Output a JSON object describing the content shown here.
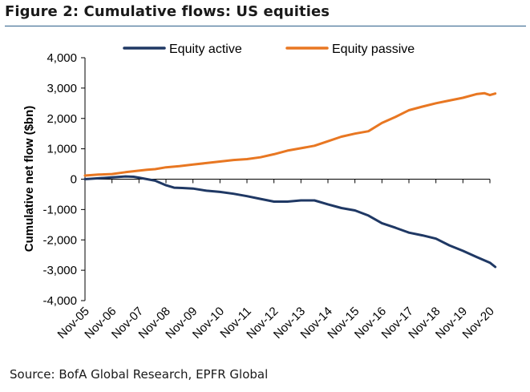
{
  "figure": {
    "title": "Figure 2: Cumulative flows: US equities",
    "source": "Source: BofA Global Research, EPFR Global"
  },
  "chart_data": {
    "type": "line",
    "title": "Figure 2: Cumulative flows: US equities",
    "xlabel": "",
    "ylabel": "Cumulative net flow ($bn)",
    "ylim": [
      -4000,
      4000
    ],
    "yticks": [
      4000,
      3000,
      2000,
      1000,
      0,
      -1000,
      -2000,
      -3000,
      -4000
    ],
    "ytick_labels": [
      "4,000",
      "3,000",
      "2,000",
      "1,000",
      "0",
      "-1,000",
      "-2,000",
      "-3,000",
      "-4,000"
    ],
    "categories": [
      "Nov-05",
      "Nov-06",
      "Nov-07",
      "Nov-08",
      "Nov-09",
      "Nov-10",
      "Nov-11",
      "Nov-12",
      "Nov-13",
      "Nov-14",
      "Nov-15",
      "Nov-16",
      "Nov-17",
      "Nov-18",
      "Nov-19",
      "Nov-20"
    ],
    "grid": false,
    "legend": "top",
    "series": [
      {
        "name": "Equity active",
        "color": "#1f3864",
        "points": [
          [
            0,
            0
          ],
          [
            0.5,
            30
          ],
          [
            1,
            60
          ],
          [
            1.5,
            90
          ],
          [
            1.8,
            80
          ],
          [
            2,
            50
          ],
          [
            2.3,
            0
          ],
          [
            2.6,
            -50
          ],
          [
            3,
            -200
          ],
          [
            3.3,
            -280
          ],
          [
            3.6,
            -290
          ],
          [
            4,
            -310
          ],
          [
            4.5,
            -380
          ],
          [
            5,
            -420
          ],
          [
            5.5,
            -480
          ],
          [
            6,
            -560
          ],
          [
            6.5,
            -650
          ],
          [
            7,
            -740
          ],
          [
            7.5,
            -740
          ],
          [
            8,
            -700
          ],
          [
            8.5,
            -700
          ],
          [
            9,
            -830
          ],
          [
            9.5,
            -950
          ],
          [
            10,
            -1030
          ],
          [
            10.5,
            -1200
          ],
          [
            11,
            -1450
          ],
          [
            11.5,
            -1600
          ],
          [
            12,
            -1760
          ],
          [
            12.5,
            -1850
          ],
          [
            13,
            -1960
          ],
          [
            13.5,
            -2180
          ],
          [
            14,
            -2360
          ],
          [
            14.5,
            -2560
          ],
          [
            15,
            -2750
          ],
          [
            15.2,
            -2890
          ]
        ]
      },
      {
        "name": "Equity passive",
        "color": "#e87722",
        "points": [
          [
            0,
            120
          ],
          [
            0.5,
            150
          ],
          [
            1,
            170
          ],
          [
            1.5,
            230
          ],
          [
            2,
            280
          ],
          [
            2.3,
            310
          ],
          [
            2.6,
            330
          ],
          [
            3,
            390
          ],
          [
            3.5,
            430
          ],
          [
            4,
            480
          ],
          [
            4.5,
            530
          ],
          [
            5,
            580
          ],
          [
            5.5,
            630
          ],
          [
            6,
            660
          ],
          [
            6.5,
            720
          ],
          [
            7,
            820
          ],
          [
            7.5,
            940
          ],
          [
            8,
            1020
          ],
          [
            8.5,
            1100
          ],
          [
            9,
            1250
          ],
          [
            9.5,
            1400
          ],
          [
            10,
            1500
          ],
          [
            10.5,
            1580
          ],
          [
            11,
            1850
          ],
          [
            11.5,
            2050
          ],
          [
            12,
            2270
          ],
          [
            12.5,
            2390
          ],
          [
            13,
            2500
          ],
          [
            13.5,
            2590
          ],
          [
            14,
            2680
          ],
          [
            14.5,
            2800
          ],
          [
            14.8,
            2830
          ],
          [
            15,
            2770
          ],
          [
            15.2,
            2820
          ]
        ]
      }
    ]
  }
}
